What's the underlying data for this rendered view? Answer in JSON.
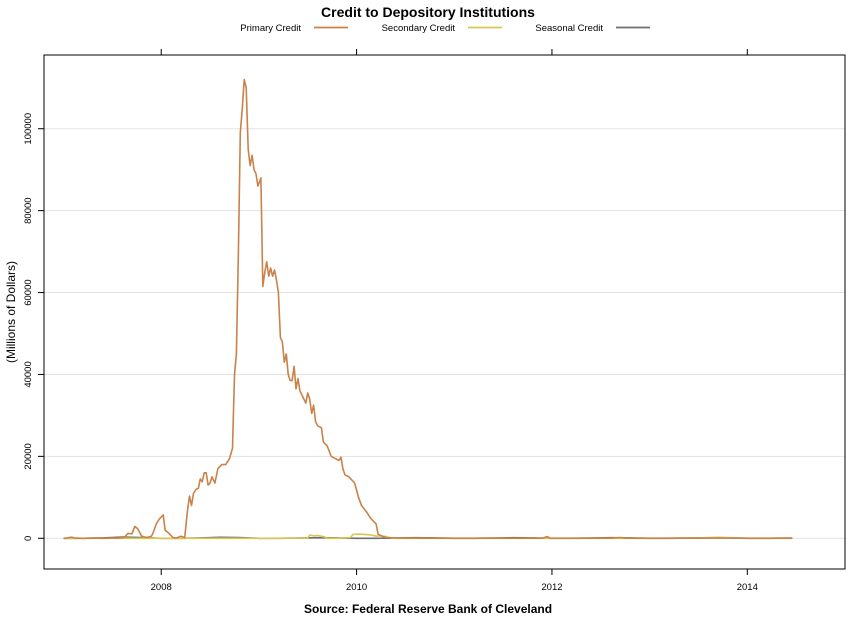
{
  "chart_data": {
    "type": "line",
    "title": "Credit to Depository Institutions",
    "ylabel": "(Millions of Dollars)",
    "xlabel": "",
    "source": "Source: Federal Reserve Bank of Cleveland",
    "xlim": [
      2006.8,
      2015.0
    ],
    "ylim": [
      -7500,
      118000
    ],
    "x_ticks": [
      2008,
      2010,
      2012,
      2014
    ],
    "x_tick_labels": [
      "2008",
      "2010",
      "2012",
      "2014"
    ],
    "y_ticks": [
      0,
      20000,
      40000,
      60000,
      80000,
      100000
    ],
    "y_tick_labels": [
      "0",
      "20000",
      "40000",
      "60000",
      "80000",
      "100000"
    ],
    "grid": "horizontal",
    "legend": "top-center",
    "series": [
      {
        "name": "Primary Credit",
        "color": "#c8824a",
        "points": [
          [
            2007.0,
            0
          ],
          [
            2007.04,
            100
          ],
          [
            2007.08,
            300
          ],
          [
            2007.12,
            50
          ],
          [
            2007.2,
            0
          ],
          [
            2007.3,
            50
          ],
          [
            2007.4,
            0
          ],
          [
            2007.5,
            100
          ],
          [
            2007.55,
            50
          ],
          [
            2007.62,
            200
          ],
          [
            2007.66,
            1200
          ],
          [
            2007.7,
            1100
          ],
          [
            2007.73,
            2900
          ],
          [
            2007.76,
            2300
          ],
          [
            2007.8,
            500
          ],
          [
            2007.85,
            200
          ],
          [
            2007.9,
            500
          ],
          [
            2007.92,
            1500
          ],
          [
            2007.95,
            3500
          ],
          [
            2007.98,
            4700
          ],
          [
            2008.02,
            5700
          ],
          [
            2008.04,
            2000
          ],
          [
            2008.08,
            1200
          ],
          [
            2008.12,
            200
          ],
          [
            2008.16,
            100
          ],
          [
            2008.2,
            500
          ],
          [
            2008.24,
            200
          ],
          [
            2008.27,
            7000
          ],
          [
            2008.29,
            10300
          ],
          [
            2008.31,
            8000
          ],
          [
            2008.33,
            11000
          ],
          [
            2008.36,
            12000
          ],
          [
            2008.38,
            12200
          ],
          [
            2008.4,
            14500
          ],
          [
            2008.42,
            13800
          ],
          [
            2008.44,
            16000
          ],
          [
            2008.46,
            16000
          ],
          [
            2008.48,
            13000
          ],
          [
            2008.5,
            13500
          ],
          [
            2008.52,
            15000
          ],
          [
            2008.55,
            13500
          ],
          [
            2008.58,
            17000
          ],
          [
            2008.62,
            18000
          ],
          [
            2008.66,
            18000
          ],
          [
            2008.7,
            19500
          ],
          [
            2008.73,
            22000
          ],
          [
            2008.75,
            40000
          ],
          [
            2008.77,
            45000
          ],
          [
            2008.79,
            70000
          ],
          [
            2008.81,
            99000
          ],
          [
            2008.83,
            105000
          ],
          [
            2008.85,
            112000
          ],
          [
            2008.87,
            110000
          ],
          [
            2008.89,
            95000
          ],
          [
            2008.91,
            91000
          ],
          [
            2008.93,
            93500
          ],
          [
            2008.95,
            90000
          ],
          [
            2008.97,
            89000
          ],
          [
            2008.99,
            86000
          ],
          [
            2009.02,
            88000
          ],
          [
            2009.04,
            61500
          ],
          [
            2009.06,
            65000
          ],
          [
            2009.08,
            67500
          ],
          [
            2009.1,
            64000
          ],
          [
            2009.12,
            66000
          ],
          [
            2009.14,
            64000
          ],
          [
            2009.16,
            65500
          ],
          [
            2009.18,
            63000
          ],
          [
            2009.2,
            60000
          ],
          [
            2009.22,
            49000
          ],
          [
            2009.24,
            48000
          ],
          [
            2009.26,
            43000
          ],
          [
            2009.28,
            45000
          ],
          [
            2009.3,
            40000
          ],
          [
            2009.32,
            38500
          ],
          [
            2009.34,
            38500
          ],
          [
            2009.36,
            42000
          ],
          [
            2009.38,
            36500
          ],
          [
            2009.4,
            39000
          ],
          [
            2009.42,
            36000
          ],
          [
            2009.45,
            34500
          ],
          [
            2009.48,
            33000
          ],
          [
            2009.5,
            35500
          ],
          [
            2009.52,
            34000
          ],
          [
            2009.54,
            30500
          ],
          [
            2009.56,
            32500
          ],
          [
            2009.58,
            28500
          ],
          [
            2009.6,
            27500
          ],
          [
            2009.64,
            27000
          ],
          [
            2009.66,
            23500
          ],
          [
            2009.7,
            22500
          ],
          [
            2009.74,
            20000
          ],
          [
            2009.78,
            19500
          ],
          [
            2009.82,
            19000
          ],
          [
            2009.84,
            19800
          ],
          [
            2009.86,
            17000
          ],
          [
            2009.88,
            15500
          ],
          [
            2009.92,
            15000
          ],
          [
            2009.96,
            14000
          ],
          [
            2009.98,
            13500
          ],
          [
            2010.02,
            10000
          ],
          [
            2010.05,
            8000
          ],
          [
            2010.1,
            6500
          ],
          [
            2010.14,
            5000
          ],
          [
            2010.16,
            4500
          ],
          [
            2010.2,
            3500
          ],
          [
            2010.22,
            1000
          ],
          [
            2010.26,
            500
          ],
          [
            2010.3,
            200
          ],
          [
            2010.4,
            100
          ],
          [
            2010.6,
            50
          ],
          [
            2010.8,
            30
          ],
          [
            2011.0,
            30
          ],
          [
            2011.3,
            20
          ],
          [
            2011.6,
            30
          ],
          [
            2011.9,
            10
          ],
          [
            2011.95,
            400
          ],
          [
            2011.98,
            50
          ],
          [
            2012.3,
            30
          ],
          [
            2012.6,
            50
          ],
          [
            2012.7,
            200
          ],
          [
            2012.75,
            50
          ],
          [
            2013.0,
            30
          ],
          [
            2013.3,
            20
          ],
          [
            2013.6,
            50
          ],
          [
            2013.8,
            80
          ],
          [
            2014.0,
            30
          ],
          [
            2014.3,
            20
          ],
          [
            2014.46,
            30
          ]
        ]
      },
      {
        "name": "Secondary Credit",
        "color": "#dcc552",
        "points": [
          [
            2007.0,
            0
          ],
          [
            2007.5,
            0
          ],
          [
            2008.0,
            0
          ],
          [
            2008.5,
            0
          ],
          [
            2009.0,
            0
          ],
          [
            2009.2,
            20
          ],
          [
            2009.5,
            50
          ],
          [
            2009.52,
            800
          ],
          [
            2009.56,
            600
          ],
          [
            2009.6,
            700
          ],
          [
            2009.64,
            500
          ],
          [
            2009.68,
            300
          ],
          [
            2009.7,
            0
          ],
          [
            2009.8,
            0
          ],
          [
            2009.94,
            200
          ],
          [
            2009.96,
            900
          ],
          [
            2010.0,
            1000
          ],
          [
            2010.05,
            1000
          ],
          [
            2010.1,
            900
          ],
          [
            2010.15,
            800
          ],
          [
            2010.2,
            500
          ],
          [
            2010.25,
            600
          ],
          [
            2010.3,
            400
          ],
          [
            2010.35,
            100
          ],
          [
            2010.4,
            0
          ],
          [
            2011.0,
            0
          ],
          [
            2012.0,
            0
          ],
          [
            2013.0,
            0
          ],
          [
            2013.5,
            100
          ],
          [
            2013.7,
            250
          ],
          [
            2013.9,
            100
          ],
          [
            2014.0,
            0
          ],
          [
            2014.46,
            0
          ]
        ]
      },
      {
        "name": "Seasonal Credit",
        "color": "#6e6e6e",
        "points": [
          [
            2007.0,
            0
          ],
          [
            2007.2,
            0
          ],
          [
            2007.4,
            100
          ],
          [
            2007.6,
            300
          ],
          [
            2007.8,
            200
          ],
          [
            2008.0,
            0
          ],
          [
            2008.2,
            0
          ],
          [
            2008.4,
            100
          ],
          [
            2008.6,
            250
          ],
          [
            2008.8,
            200
          ],
          [
            2009.0,
            0
          ],
          [
            2009.2,
            0
          ],
          [
            2009.4,
            50
          ],
          [
            2009.6,
            150
          ],
          [
            2009.8,
            100
          ],
          [
            2010.0,
            0
          ],
          [
            2010.2,
            0
          ],
          [
            2010.4,
            50
          ],
          [
            2010.6,
            150
          ],
          [
            2010.8,
            100
          ],
          [
            2011.0,
            0
          ],
          [
            2011.2,
            0
          ],
          [
            2011.4,
            50
          ],
          [
            2011.6,
            150
          ],
          [
            2011.8,
            100
          ],
          [
            2012.0,
            0
          ],
          [
            2012.2,
            0
          ],
          [
            2012.4,
            50
          ],
          [
            2012.6,
            150
          ],
          [
            2012.8,
            100
          ],
          [
            2013.0,
            0
          ],
          [
            2013.2,
            0
          ],
          [
            2013.4,
            50
          ],
          [
            2013.6,
            120
          ],
          [
            2013.8,
            100
          ],
          [
            2014.0,
            0
          ],
          [
            2014.2,
            0
          ],
          [
            2014.46,
            50
          ]
        ]
      }
    ]
  }
}
